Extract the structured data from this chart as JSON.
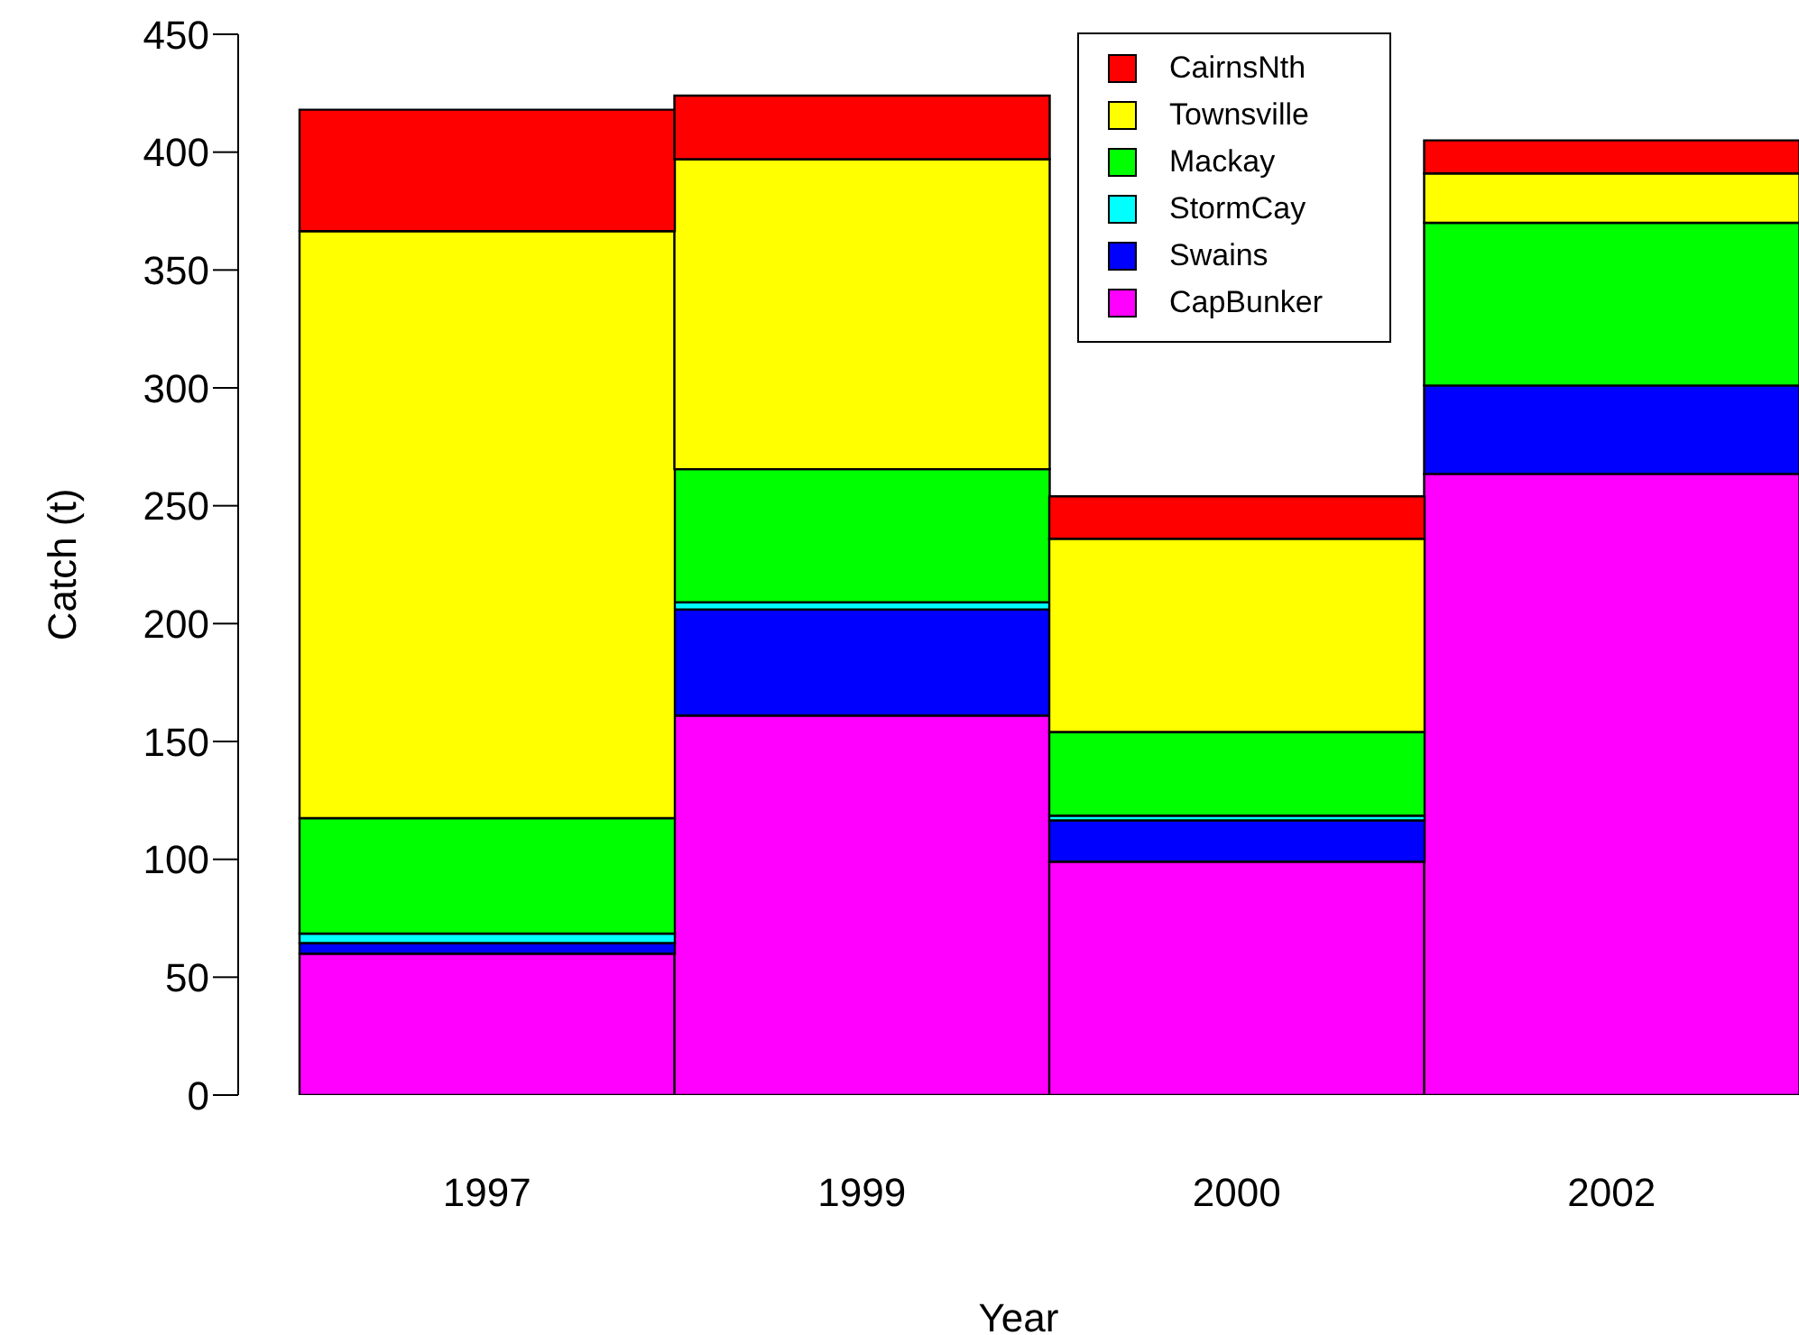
{
  "chart_data": {
    "type": "bar",
    "stacked": true,
    "xlabel": "Year",
    "ylabel": "Catch  (t)",
    "categories": [
      "1997",
      "1999",
      "2000",
      "2002"
    ],
    "series": [
      {
        "name": "CapBunker",
        "color": "#ff00ff",
        "values": [
          60,
          161,
          99,
          263.5
        ]
      },
      {
        "name": "Swains",
        "color": "#0000ff",
        "values": [
          4.5,
          45,
          17.5,
          37.5
        ]
      },
      {
        "name": "StormCay",
        "color": "#00ffff",
        "values": [
          4,
          3,
          2,
          0
        ]
      },
      {
        "name": "Mackay",
        "color": "#00ff00",
        "values": [
          49,
          56.5,
          35.5,
          69
        ]
      },
      {
        "name": "Townsville",
        "color": "#ffff00",
        "values": [
          249,
          131.5,
          82,
          21
        ]
      },
      {
        "name": "CairnsNth",
        "color": "#ff0000",
        "values": [
          51.5,
          27,
          18,
          14
        ]
      }
    ],
    "ylim": [
      0,
      450
    ],
    "yticks": [
      0,
      50,
      100,
      150,
      200,
      250,
      300,
      350,
      400,
      450
    ],
    "grid": false,
    "legend": "top right"
  }
}
